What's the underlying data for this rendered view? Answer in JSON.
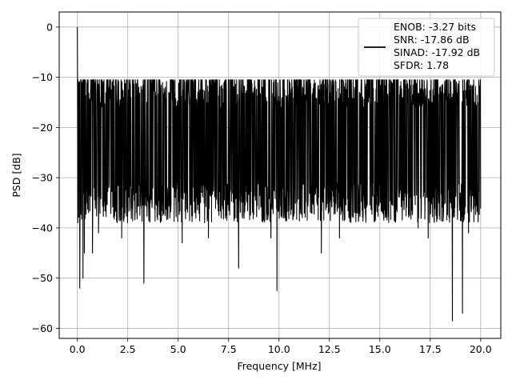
{
  "chart_data": {
    "type": "line",
    "title": "",
    "xlabel": "Frequency [MHz]",
    "ylabel": "PSD [dB]",
    "xlim": [
      -0.9,
      21.0
    ],
    "ylim": [
      -62.0,
      3.0
    ],
    "xticks": [
      0.0,
      2.5,
      5.0,
      7.5,
      10.0,
      12.5,
      15.0,
      17.5,
      20.0
    ],
    "xtick_labels": [
      "0.0",
      "2.5",
      "5.0",
      "7.5",
      "10.0",
      "12.5",
      "15.0",
      "17.5",
      "20.0"
    ],
    "yticks": [
      0,
      -10,
      -20,
      -30,
      -40,
      -50,
      -60
    ],
    "ytick_labels": [
      "0",
      "−10",
      "−20",
      "−30",
      "−40",
      "−50",
      "−60"
    ],
    "grid": true,
    "legend_position": "top-right",
    "legend_lines": [
      "ENOB: -3.27 bits",
      "SNR: -17.86 dB",
      "SINAD: -17.92 dB",
      "SFDR: 1.78"
    ],
    "line_color": "#000000",
    "noise_floor_band_db": [
      -35,
      -12
    ],
    "peaks": [
      {
        "x": 0.0,
        "y": 0.0
      },
      {
        "x": 0.12,
        "y": -52.0
      },
      {
        "x": 0.28,
        "y": -50.0
      },
      {
        "x": 0.35,
        "y": -45.0
      },
      {
        "x": 0.75,
        "y": -45.0
      },
      {
        "x": 1.05,
        "y": -41.0
      },
      {
        "x": 2.2,
        "y": -42.0
      },
      {
        "x": 3.3,
        "y": -51.0
      },
      {
        "x": 5.2,
        "y": -43.0
      },
      {
        "x": 6.5,
        "y": -42.0
      },
      {
        "x": 8.0,
        "y": -48.0
      },
      {
        "x": 9.6,
        "y": -42.0
      },
      {
        "x": 9.9,
        "y": -52.5
      },
      {
        "x": 12.1,
        "y": -45.0
      },
      {
        "x": 13.0,
        "y": -42.0
      },
      {
        "x": 16.9,
        "y": -40.0
      },
      {
        "x": 17.4,
        "y": -42.0
      },
      {
        "x": 18.6,
        "y": -58.5
      },
      {
        "x": 19.1,
        "y": -57.0
      },
      {
        "x": 19.4,
        "y": -41.0
      }
    ]
  }
}
